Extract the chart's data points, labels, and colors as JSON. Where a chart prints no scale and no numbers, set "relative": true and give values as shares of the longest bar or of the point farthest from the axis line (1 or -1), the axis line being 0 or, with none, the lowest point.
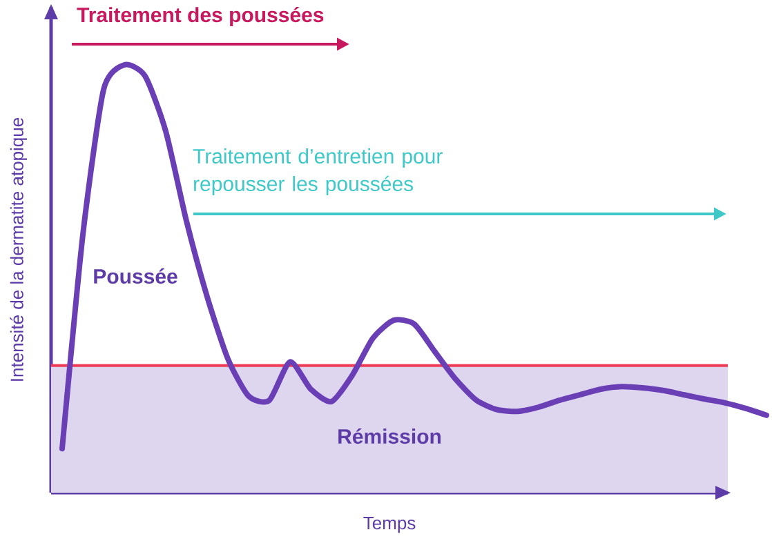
{
  "chart_data": {
    "type": "line",
    "relative": true,
    "xlabel": "Temps",
    "ylabel": "Intensité de la dermatite atopique",
    "categories": [
      null,
      null,
      null,
      null,
      null,
      null,
      null,
      null,
      null,
      null,
      null,
      null,
      null,
      null,
      null,
      null,
      null,
      null,
      null,
      null,
      null,
      null,
      null,
      null,
      null,
      null,
      null,
      null,
      null,
      null,
      null,
      null,
      null,
      null,
      null
    ],
    "series": [
      {
        "color": "#6a3fb5",
        "values": [
          0.103,
          0.603,
          0.942,
          1,
          0.974,
          0.845,
          0.635,
          0.458,
          0.313,
          0.226,
          0.216,
          0.306,
          0.242,
          0.213,
          0.274,
          0.361,
          0.403,
          0.394,
          0.329,
          0.265,
          0.216,
          0.194,
          0.19,
          0.2,
          0.216,
          0.229,
          0.242,
          0.248,
          0.245,
          0.239,
          0.229,
          0.219,
          0.21,
          0.197,
          0.181
        ]
      }
    ],
    "ref_lines": [
      {
        "axis": "y",
        "value": 0.297,
        "color": "#ef3b55"
      }
    ],
    "bands": [
      {
        "axis": "y",
        "from": 0,
        "to": 0.297,
        "label": "Rémission",
        "color": "#ddd6ee"
      }
    ],
    "annotations": [
      "Traitement des poussées",
      "Traitement d’entretien pour repousser les poussées",
      "Poussée"
    ],
    "marker": "none",
    "line_style": "solid"
  }
}
